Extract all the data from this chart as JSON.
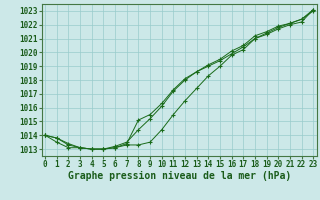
{
  "x": [
    0,
    1,
    2,
    3,
    4,
    5,
    6,
    7,
    8,
    9,
    10,
    11,
    12,
    13,
    14,
    15,
    16,
    17,
    18,
    19,
    20,
    21,
    22,
    23
  ],
  "line1": [
    1014.0,
    1013.8,
    1013.3,
    1013.1,
    1013.0,
    1013.0,
    1013.1,
    1013.4,
    1015.1,
    1015.5,
    1016.3,
    1017.3,
    1018.1,
    1018.6,
    1019.0,
    1019.4,
    1019.9,
    1020.4,
    1021.0,
    1021.3,
    1021.7,
    1022.0,
    1022.2,
    1023.1
  ],
  "line2": [
    1014.0,
    1013.8,
    1013.4,
    1013.1,
    1013.0,
    1013.0,
    1013.2,
    1013.5,
    1014.4,
    1015.2,
    1016.1,
    1017.2,
    1018.0,
    1018.6,
    1019.1,
    1019.5,
    1020.1,
    1020.5,
    1021.2,
    1021.5,
    1021.9,
    1022.1,
    1022.4,
    1023.1
  ],
  "line3": [
    1014.0,
    1013.5,
    1013.1,
    1013.1,
    1013.0,
    1013.0,
    1013.1,
    1013.3,
    1013.3,
    1013.5,
    1014.4,
    1015.5,
    1016.5,
    1017.4,
    1018.3,
    1019.0,
    1019.8,
    1020.2,
    1021.0,
    1021.4,
    1021.8,
    1022.1,
    1022.4,
    1023.0
  ],
  "ylim": [
    1012.5,
    1023.5
  ],
  "yticks": [
    1013,
    1014,
    1015,
    1016,
    1017,
    1018,
    1019,
    1020,
    1021,
    1022,
    1023
  ],
  "xticks": [
    0,
    1,
    2,
    3,
    4,
    5,
    6,
    7,
    8,
    9,
    10,
    11,
    12,
    13,
    14,
    15,
    16,
    17,
    18,
    19,
    20,
    21,
    22,
    23
  ],
  "xlabel": "Graphe pression niveau de la mer (hPa)",
  "line_color": "#1a6b1a",
  "marker_color": "#1a6b1a",
  "bg_color": "#cce8e8",
  "grid_color": "#99cccc",
  "axis_color": "#447744",
  "label_color": "#1a5c1a",
  "tick_fontsize": 5.5,
  "xlabel_fontsize": 7.0
}
